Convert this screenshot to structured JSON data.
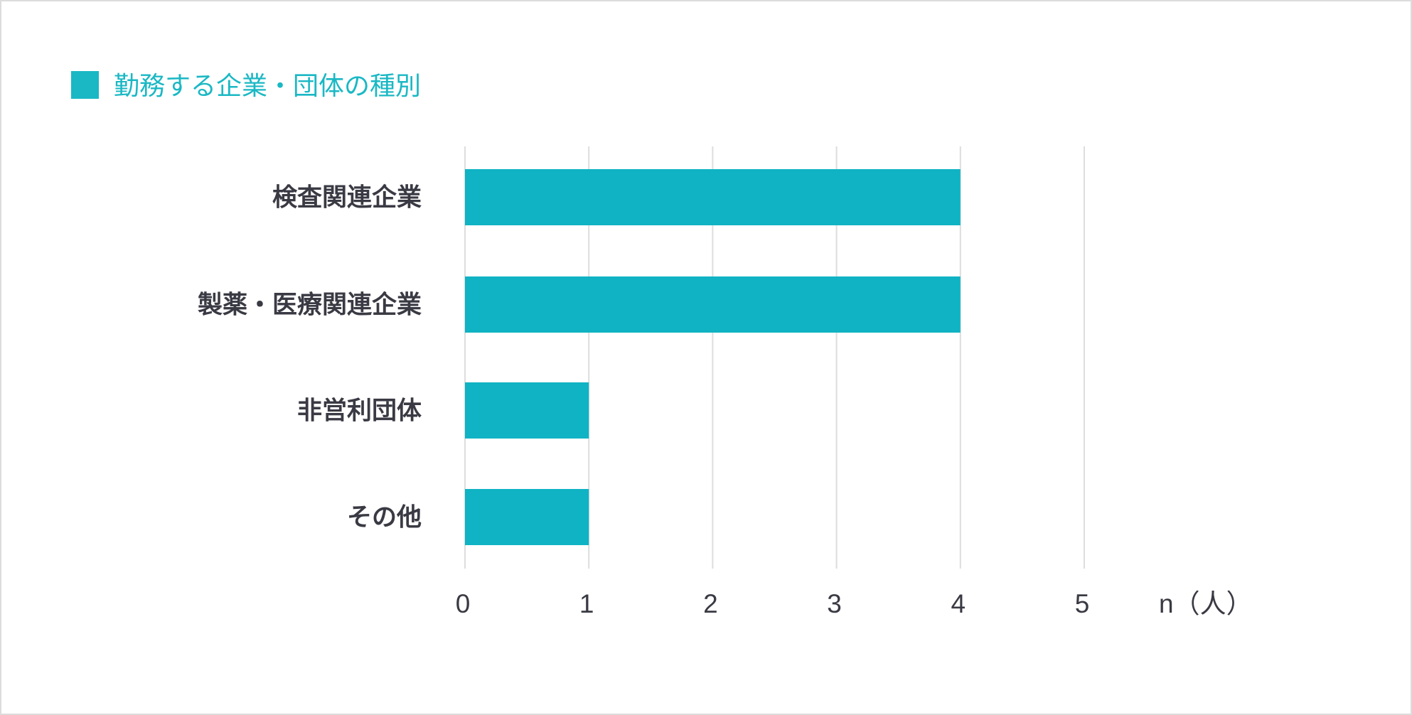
{
  "chart_data": {
    "type": "bar",
    "orientation": "horizontal",
    "title": "勤務する企業・団体の種別",
    "categories": [
      "検査関連企業",
      "製薬・医療関連企業",
      "非営利団体",
      "その他"
    ],
    "values": [
      4,
      4,
      1,
      1
    ],
    "xlabel": "n（人）",
    "xlim": [
      0,
      5
    ],
    "xticks": [
      "0",
      "1",
      "2",
      "3",
      "4",
      "5"
    ],
    "grid": "vertical",
    "legend": "none",
    "colors": {
      "bar": "#0fb3c3",
      "title": "#1ab8c4",
      "grid": "#dddddd",
      "text": "#3a3a44"
    }
  }
}
